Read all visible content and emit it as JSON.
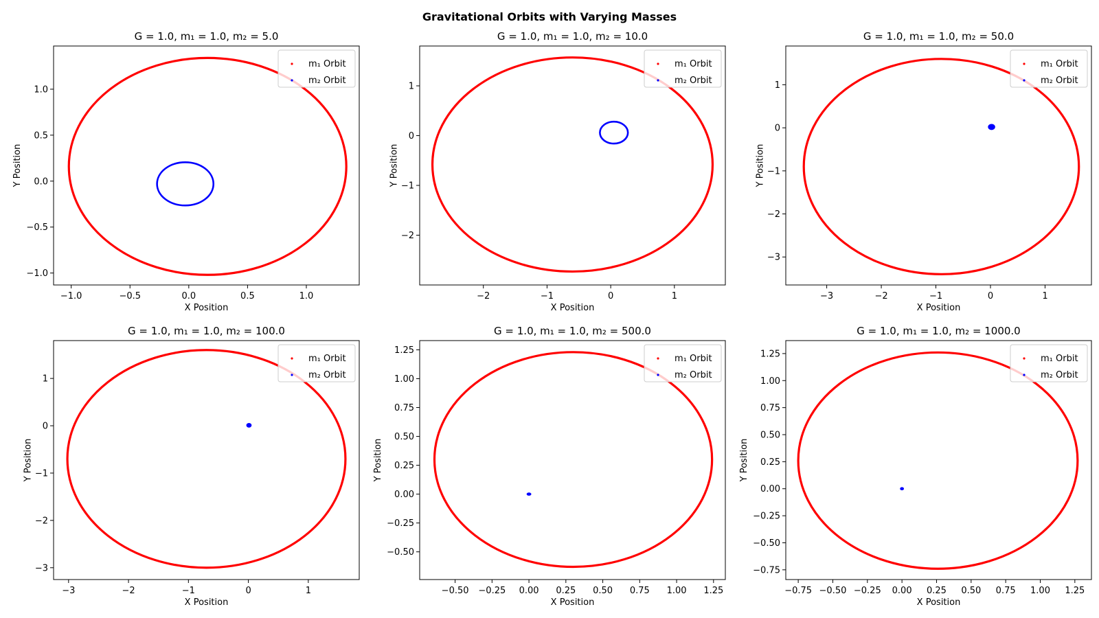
{
  "figure": {
    "title": "Gravitational Orbits with Varying Masses",
    "colors": {
      "m1": "#ff0000",
      "m2": "#0000ff"
    }
  },
  "chart_data": [
    {
      "type": "scatter",
      "title": "G = 1.0, m₁ = 1.0, m₂ = 5.0",
      "xlabel": "X Position",
      "ylabel": "Y Position",
      "xlim": [
        -1.15,
        1.45
      ],
      "ylim": [
        -1.13,
        1.47
      ],
      "xticks": [
        -1.0,
        -0.5,
        0.0,
        0.5,
        1.0
      ],
      "xtick_labels": [
        "−1.0",
        "−0.5",
        "0.0",
        "0.5",
        "1.0"
      ],
      "yticks": [
        -1.0,
        -0.5,
        0.0,
        0.5,
        1.0
      ],
      "ytick_labels": [
        "−1.0",
        "−0.5",
        "0.0",
        "0.5",
        "1.0"
      ],
      "legend": [
        "m₁ Orbit",
        "m₂ Orbit"
      ],
      "legend_loc": "upper right",
      "grid": false,
      "series": [
        {
          "name": "m₁ Orbit",
          "color": "#ff0000",
          "shape": "ellipse",
          "center": [
            0.16,
            0.16
          ],
          "rx": 1.18,
          "ry": 1.18,
          "rotation_deg": 0
        },
        {
          "name": "m₂ Orbit",
          "color": "#0000ff",
          "shape": "ellipse",
          "center": [
            -0.03,
            -0.03
          ],
          "rx": 0.24,
          "ry": 0.235,
          "rotation_deg": 0
        }
      ]
    },
    {
      "type": "scatter",
      "title": "G = 1.0, m₁ = 1.0, m₂ = 10.0",
      "xlabel": "X Position",
      "ylabel": "Y Position",
      "xlim": [
        -3.0,
        1.8
      ],
      "ylim": [
        -3.0,
        1.8
      ],
      "xticks": [
        -2,
        -1,
        0,
        1
      ],
      "xtick_labels": [
        "−2",
        "−1",
        "0",
        "1"
      ],
      "yticks": [
        -2,
        -1,
        0,
        1
      ],
      "ytick_labels": [
        "−2",
        "−1",
        "0",
        "1"
      ],
      "legend": [
        "m₁ Orbit",
        "m₂ Orbit"
      ],
      "legend_loc": "upper right",
      "grid": false,
      "series": [
        {
          "name": "m₁ Orbit",
          "color": "#ff0000",
          "shape": "ellipse",
          "center": [
            -0.6,
            -0.58
          ],
          "rx": 2.2,
          "ry": 2.15,
          "rotation_deg": 0
        },
        {
          "name": "m₂ Orbit",
          "color": "#0000ff",
          "shape": "ellipse",
          "center": [
            0.05,
            0.06
          ],
          "rx": 0.22,
          "ry": 0.22,
          "rotation_deg": 0
        }
      ]
    },
    {
      "type": "scatter",
      "title": "G = 1.0, m₁ = 1.0, m₂ = 50.0",
      "xlabel": "X Position",
      "ylabel": "Y Position",
      "xlim": [
        -3.75,
        1.85
      ],
      "ylim": [
        -3.65,
        1.9
      ],
      "xticks": [
        -3,
        -2,
        -1,
        0,
        1
      ],
      "xtick_labels": [
        "−3",
        "−2",
        "−1",
        "0",
        "1"
      ],
      "yticks": [
        -3,
        -2,
        -1,
        0,
        1
      ],
      "ytick_labels": [
        "−3",
        "−2",
        "−1",
        "0",
        "1"
      ],
      "legend": [
        "m₁ Orbit",
        "m₂ Orbit"
      ],
      "legend_loc": "upper right",
      "grid": false,
      "series": [
        {
          "name": "m₁ Orbit",
          "color": "#ff0000",
          "shape": "ellipse",
          "center": [
            -0.9,
            -0.9
          ],
          "rx": 2.52,
          "ry": 2.5,
          "rotation_deg": 0
        },
        {
          "name": "m₂ Orbit",
          "color": "#0000ff",
          "shape": "ellipse",
          "center": [
            0.02,
            0.02
          ],
          "rx": 0.05,
          "ry": 0.05,
          "rotation_deg": 0
        }
      ]
    },
    {
      "type": "scatter",
      "title": "G = 1.0, m₁ = 1.0, m₂ = 100.0",
      "xlabel": "X Position",
      "ylabel": "Y Position",
      "xlim": [
        -3.25,
        1.85
      ],
      "ylim": [
        -3.25,
        1.8
      ],
      "xticks": [
        -3,
        -2,
        -1,
        0,
        1
      ],
      "xtick_labels": [
        "−3",
        "−2",
        "−1",
        "0",
        "1"
      ],
      "yticks": [
        -3,
        -2,
        -1,
        0,
        1
      ],
      "ytick_labels": [
        "−3",
        "−2",
        "−1",
        "0",
        "1"
      ],
      "legend": [
        "m₁ Orbit",
        "m₂ Orbit"
      ],
      "legend_loc": "upper right",
      "grid": false,
      "series": [
        {
          "name": "m₁ Orbit",
          "color": "#ff0000",
          "shape": "ellipse",
          "center": [
            -0.7,
            -0.7
          ],
          "rx": 2.32,
          "ry": 2.3,
          "rotation_deg": 0
        },
        {
          "name": "m₂ Orbit",
          "color": "#0000ff",
          "shape": "ellipse",
          "center": [
            0.01,
            0.01
          ],
          "rx": 0.03,
          "ry": 0.03,
          "rotation_deg": 0
        }
      ]
    },
    {
      "type": "scatter",
      "title": "G = 1.0, m₁ = 1.0, m₂ = 500.0",
      "xlabel": "X Position",
      "ylabel": "Y Position",
      "xlim": [
        -0.74,
        1.33
      ],
      "ylim": [
        -0.74,
        1.33
      ],
      "xticks": [
        -0.5,
        -0.25,
        0.0,
        0.25,
        0.5,
        0.75,
        1.0,
        1.25
      ],
      "xtick_labels": [
        "−0.50",
        "−0.25",
        "0.00",
        "0.25",
        "0.50",
        "0.75",
        "1.00",
        "1.25"
      ],
      "yticks": [
        -0.5,
        -0.25,
        0.0,
        0.25,
        0.5,
        0.75,
        1.0,
        1.25
      ],
      "ytick_labels": [
        "−0.50",
        "−0.25",
        "0.00",
        "0.25",
        "0.50",
        "0.75",
        "1.00",
        "1.25"
      ],
      "legend": [
        "m₁ Orbit",
        "m₂ Orbit"
      ],
      "legend_loc": "upper right",
      "grid": false,
      "series": [
        {
          "name": "m₁ Orbit",
          "color": "#ff0000",
          "shape": "ellipse",
          "center": [
            0.3,
            0.3
          ],
          "rx": 0.94,
          "ry": 0.93,
          "rotation_deg": 0
        },
        {
          "name": "m₂ Orbit",
          "color": "#0000ff",
          "shape": "ellipse",
          "center": [
            0.0,
            0.0
          ],
          "rx": 0.01,
          "ry": 0.005,
          "rotation_deg": 0
        }
      ]
    },
    {
      "type": "scatter",
      "title": "G = 1.0, m₁ = 1.0, m₂ = 1000.0",
      "xlabel": "X Position",
      "ylabel": "Y Position",
      "xlim": [
        -0.84,
        1.37
      ],
      "ylim": [
        -0.84,
        1.37
      ],
      "xticks": [
        -0.75,
        -0.5,
        -0.25,
        0.0,
        0.25,
        0.5,
        0.75,
        1.0,
        1.25
      ],
      "xtick_labels": [
        "−0.75",
        "−0.50",
        "−0.25",
        "0.00",
        "0.25",
        "0.50",
        "0.75",
        "1.00",
        "1.25"
      ],
      "yticks": [
        -0.75,
        -0.5,
        -0.25,
        0.0,
        0.25,
        0.5,
        0.75,
        1.0,
        1.25
      ],
      "ytick_labels": [
        "−0.75",
        "−0.50",
        "−0.25",
        "0.00",
        "0.25",
        "0.50",
        "0.75",
        "1.00",
        "1.25"
      ],
      "legend": [
        "m₁ Orbit",
        "m₂ Orbit"
      ],
      "legend_loc": "upper right",
      "grid": false,
      "series": [
        {
          "name": "m₁ Orbit",
          "color": "#ff0000",
          "shape": "ellipse",
          "center": [
            0.26,
            0.26
          ],
          "rx": 1.01,
          "ry": 1.0,
          "rotation_deg": 0
        },
        {
          "name": "m₂ Orbit",
          "color": "#0000ff",
          "shape": "ellipse",
          "center": [
            0.0,
            0.0
          ],
          "rx": 0.006,
          "ry": 0.004,
          "rotation_deg": 0
        }
      ]
    }
  ]
}
